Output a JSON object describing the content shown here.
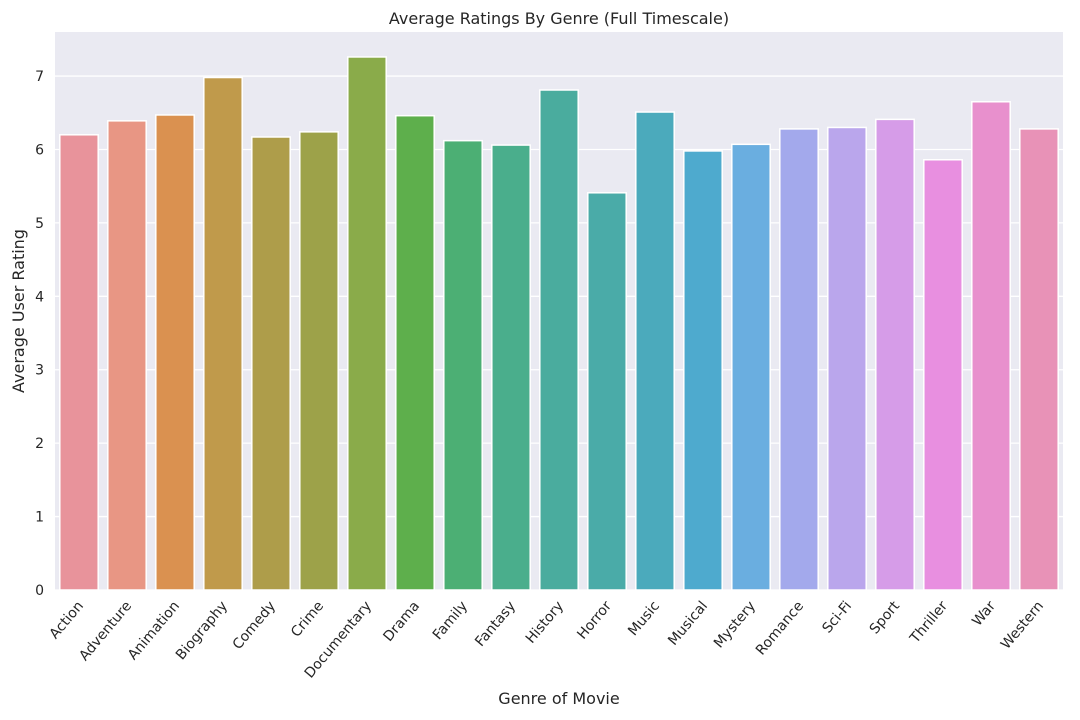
{
  "chart_data": {
    "type": "bar",
    "title": "Average Ratings By Genre (Full Timescale)",
    "xlabel": "Genre of Movie",
    "ylabel": "Average User Rating",
    "ylim": [
      0,
      7.6
    ],
    "yticks": [
      0,
      1,
      2,
      3,
      4,
      5,
      6,
      7
    ],
    "grid": true,
    "background": "#eaeaf2",
    "categories": [
      "Action",
      "Adventure",
      "Animation",
      "Biography",
      "Comedy",
      "Crime",
      "Documentary",
      "Drama",
      "Family",
      "Fantasy",
      "History",
      "Horror",
      "Music",
      "Musical",
      "Mystery",
      "Romance",
      "Sci-Fi",
      "Sport",
      "Thriller",
      "War",
      "Western"
    ],
    "values": [
      6.2,
      6.39,
      6.47,
      6.98,
      6.17,
      6.24,
      7.26,
      6.46,
      6.12,
      6.06,
      6.81,
      5.41,
      6.51,
      5.98,
      6.07,
      6.28,
      6.3,
      6.41,
      5.86,
      6.65,
      6.28
    ],
    "colors": [
      "#e8939b",
      "#e89684",
      "#da9150",
      "#c09a4b",
      "#ae9d4a",
      "#9da249",
      "#8aab4a",
      "#5eaf4c",
      "#4caf74",
      "#4aae8c",
      "#4aac9e",
      "#4aaba8",
      "#4baabc",
      "#4eaace",
      "#6aaee0",
      "#a3a9ec",
      "#baa6ec",
      "#d69ce8",
      "#e88fe0",
      "#e890cd",
      "#e892b7"
    ]
  }
}
